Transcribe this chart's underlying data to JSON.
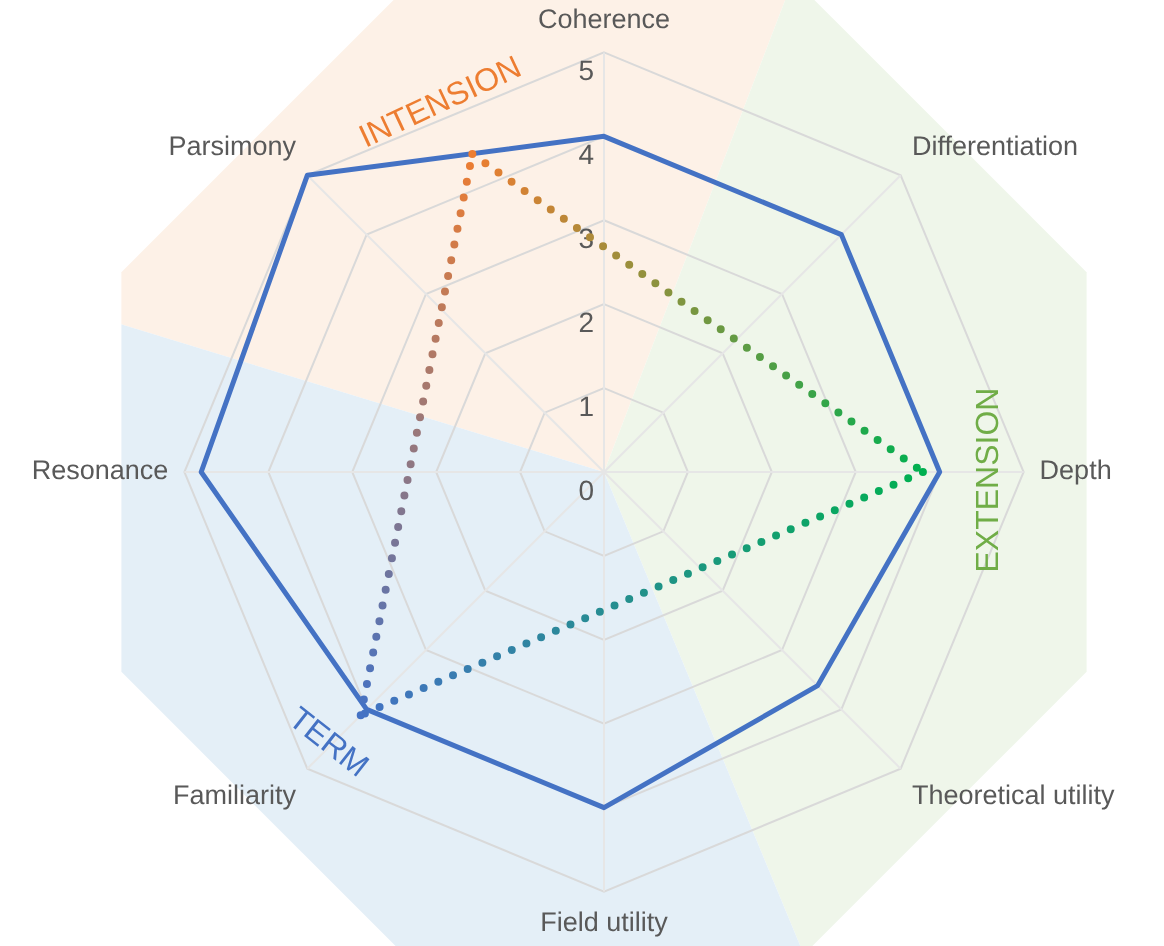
{
  "chart_data": {
    "type": "radar",
    "categories": [
      "Coherence",
      "Differentiation",
      "Depth",
      "Theoretical utility",
      "Field utility",
      "Familiarity",
      "Resonance",
      "Parsimony"
    ],
    "series": [
      {
        "color": "#4472c4",
        "values": [
          4,
          4,
          4,
          3.6,
          4,
          4,
          4.8,
          5
        ]
      }
    ],
    "ylim": [
      0,
      5
    ],
    "yticks": [
      0,
      1,
      2,
      3,
      4,
      5
    ],
    "grid": true,
    "legend": false,
    "marker": "none",
    "line_style": "solid",
    "annotations": [
      "INTENSION",
      "EXTENSION",
      "TERM"
    ]
  }
}
